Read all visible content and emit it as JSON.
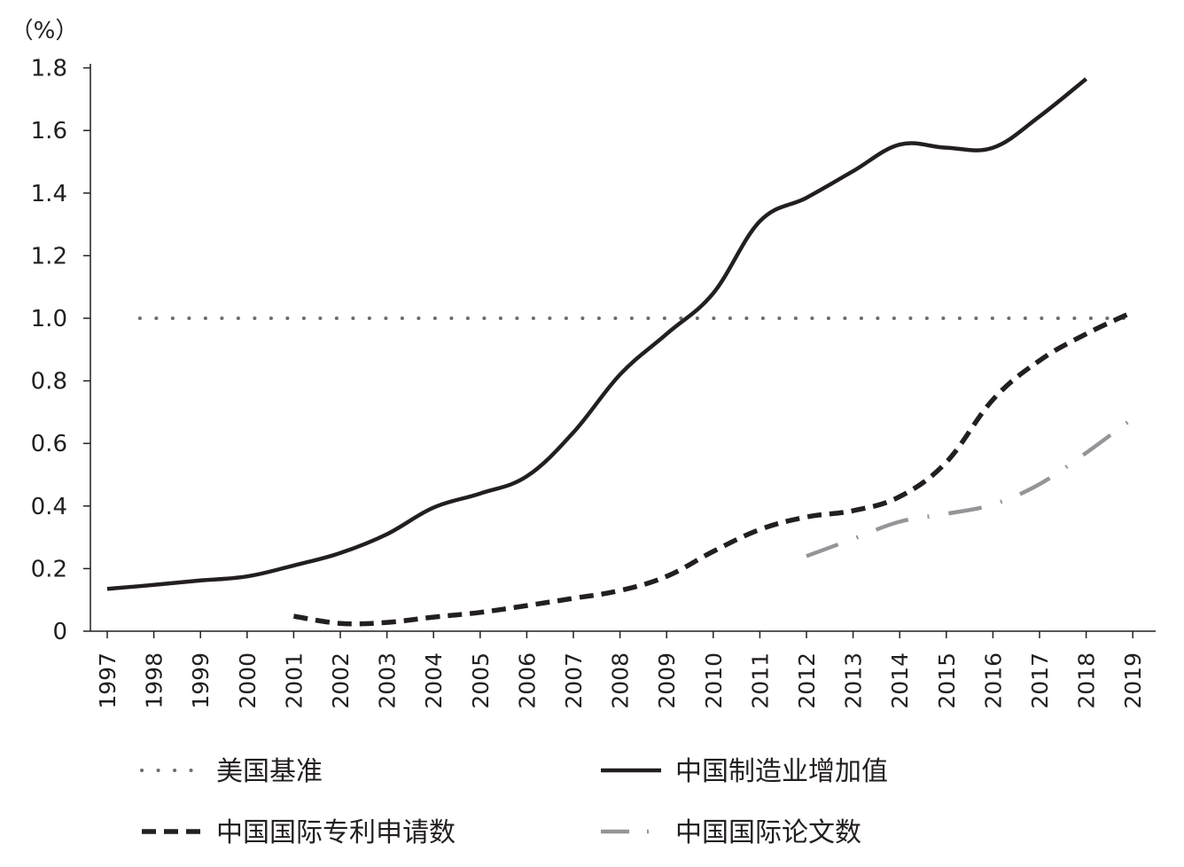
{
  "chart_data": {
    "type": "line",
    "y_unit_label": "（%）",
    "ylim": [
      0,
      1.8
    ],
    "y_ticks": [
      "0",
      "0.2",
      "0.4",
      "0.6",
      "0.8",
      "1.0",
      "1.2",
      "1.4",
      "1.6",
      "1.8"
    ],
    "categories": [
      "1997",
      "1998",
      "1999",
      "2000",
      "2001",
      "2002",
      "2003",
      "2004",
      "2005",
      "2006",
      "2007",
      "2008",
      "2009",
      "2010",
      "2011",
      "2012",
      "2013",
      "2014",
      "2015",
      "2016",
      "2017",
      "2018",
      "2019"
    ],
    "grid": false,
    "legend_position": "bottom",
    "series": [
      {
        "name": "美国基准",
        "style": "dotted",
        "color": "#6d6e71",
        "points": [
          [
            1997.7,
            1.0
          ],
          [
            2019,
            1.0
          ]
        ]
      },
      {
        "name": "中国制造业增加值",
        "style": "solid",
        "color": "#231f20",
        "points": [
          [
            1997,
            0.135
          ],
          [
            1998,
            0.148
          ],
          [
            1999,
            0.162
          ],
          [
            2000,
            0.175
          ],
          [
            2001,
            0.21
          ],
          [
            2002,
            0.25
          ],
          [
            2003,
            0.31
          ],
          [
            2004,
            0.395
          ],
          [
            2005,
            0.44
          ],
          [
            2006,
            0.495
          ],
          [
            2007,
            0.635
          ],
          [
            2008,
            0.82
          ],
          [
            2009,
            0.95
          ],
          [
            2010,
            1.08
          ],
          [
            2011,
            1.31
          ],
          [
            2012,
            1.385
          ],
          [
            2013,
            1.47
          ],
          [
            2014,
            1.555
          ],
          [
            2015,
            1.545
          ],
          [
            2016,
            1.545
          ],
          [
            2017,
            1.645
          ],
          [
            2018,
            1.765
          ]
        ]
      },
      {
        "name": "中国国际专利申请数",
        "style": "dashed",
        "color": "#231f20",
        "points": [
          [
            2001,
            0.048
          ],
          [
            2002,
            0.025
          ],
          [
            2003,
            0.028
          ],
          [
            2004,
            0.045
          ],
          [
            2005,
            0.06
          ],
          [
            2006,
            0.082
          ],
          [
            2007,
            0.105
          ],
          [
            2008,
            0.13
          ],
          [
            2009,
            0.175
          ],
          [
            2010,
            0.255
          ],
          [
            2011,
            0.325
          ],
          [
            2012,
            0.365
          ],
          [
            2013,
            0.385
          ],
          [
            2014,
            0.43
          ],
          [
            2015,
            0.54
          ],
          [
            2016,
            0.74
          ],
          [
            2017,
            0.865
          ],
          [
            2018,
            0.95
          ],
          [
            2019,
            1.02
          ]
        ]
      },
      {
        "name": "中国国际论文数",
        "style": "dashdot",
        "color": "#939598",
        "points": [
          [
            2012,
            0.24
          ],
          [
            2013,
            0.295
          ],
          [
            2014,
            0.35
          ],
          [
            2015,
            0.375
          ],
          [
            2016,
            0.405
          ],
          [
            2017,
            0.47
          ],
          [
            2018,
            0.57
          ],
          [
            2019,
            0.68
          ]
        ]
      }
    ]
  }
}
